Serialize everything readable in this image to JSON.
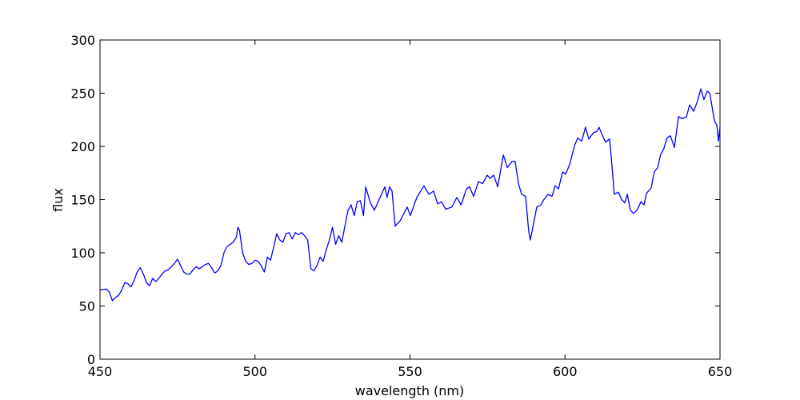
{
  "chart_data": {
    "type": "line",
    "xlabel": "wavelength (nm)",
    "ylabel": "flux",
    "xlim": [
      450,
      650
    ],
    "ylim": [
      0,
      300
    ],
    "xticks": [
      450,
      500,
      550,
      600,
      650
    ],
    "yticks": [
      0,
      50,
      100,
      150,
      200,
      250,
      300
    ],
    "grid": false,
    "series": [
      {
        "color": "#0000ff",
        "x": [
          450,
          452,
          453,
          454,
          455,
          456,
          457,
          458,
          459,
          460,
          461,
          462,
          463,
          464,
          465,
          466,
          467,
          468,
          469,
          470,
          471,
          472,
          473,
          474,
          475,
          476,
          477,
          478,
          479,
          480,
          481,
          482,
          483,
          484,
          485,
          486,
          487,
          488,
          489,
          490,
          491,
          492,
          493,
          494,
          494.5,
          495,
          496,
          497,
          498,
          499,
          500,
          501,
          502,
          503,
          504,
          505,
          506,
          507,
          508,
          509,
          510,
          511,
          512,
          513,
          514,
          515,
          516,
          517,
          518,
          519,
          520,
          521,
          522,
          523,
          524,
          525,
          526,
          527,
          528,
          529,
          530,
          531,
          532,
          533,
          534,
          535,
          535.7,
          537.2,
          538.5,
          541.9,
          542.6,
          543.4,
          544.2,
          545.2,
          546.8,
          549.1,
          550.1,
          552.2,
          554.5,
          556.1,
          557.6,
          558.9,
          560.2,
          561.5,
          563.5,
          565.1,
          566.5,
          568.2,
          569.2,
          570.5,
          572.1,
          573.4,
          574.9,
          575.9,
          577,
          578.3,
          580.1,
          581.4,
          582.9,
          583.9,
          585,
          586,
          587.3,
          588.3,
          588.8,
          589.9,
          590.9,
          592.2,
          593.2,
          594.5,
          595.8,
          596.8,
          597.9,
          599.2,
          600.2,
          601.5,
          603,
          604.1,
          605.4,
          606.6,
          607.7,
          609.2,
          610.3,
          611,
          612.1,
          613.1,
          614.4,
          615.2,
          615.9,
          617.2,
          618.3,
          619.3,
          620.1,
          621.1,
          622.1,
          623.2,
          624.5,
          625.5,
          626.3,
          627.8,
          628.8,
          629.9,
          630.8,
          631.9,
          632.9,
          634,
          635.3,
          636.6,
          637.9,
          639.2,
          640.2,
          641.5,
          642.8,
          643.8,
          644.8,
          645.9,
          646.7,
          647.4,
          648.2,
          649,
          649.5,
          650
        ],
        "values": [
          65,
          66,
          63,
          55,
          58,
          60,
          65,
          72,
          71,
          68,
          74,
          82,
          86,
          80,
          72,
          69,
          76,
          73,
          76,
          80,
          83,
          84,
          87,
          90,
          94,
          88,
          82,
          80,
          80,
          84,
          87,
          85,
          87,
          89,
          90,
          86,
          81,
          83,
          88,
          100,
          106,
          108,
          110,
          115,
          124,
          121,
          100,
          92,
          89,
          90,
          93,
          92,
          88,
          82,
          96,
          93,
          105,
          118,
          112,
          110,
          118,
          119,
          113,
          119,
          117,
          119,
          116,
          112,
          85,
          83,
          88,
          96,
          92,
          103,
          112,
          124,
          108,
          116,
          110,
          125,
          140,
          145,
          135,
          148,
          149,
          135,
          162,
          147,
          140,
          162,
          152,
          162,
          158,
          125,
          130,
          143,
          135,
          152,
          163,
          155,
          158,
          146,
          148,
          141,
          143,
          152,
          145,
          160,
          162,
          153,
          167,
          165,
          173,
          170,
          173,
          162,
          192,
          180,
          186,
          186,
          165,
          155,
          153,
          120,
          112,
          128,
          143,
          145,
          150,
          155,
          153,
          163,
          160,
          176,
          174,
          183,
          200,
          208,
          205,
          218,
          207,
          213,
          214,
          218,
          210,
          204,
          207,
          180,
          155,
          157,
          150,
          147,
          155,
          140,
          137,
          140,
          148,
          145,
          156,
          161,
          176,
          180,
          192,
          198,
          208,
          210,
          199,
          228,
          226,
          228,
          239,
          233,
          243,
          254,
          244,
          252,
          250,
          238,
          224,
          220,
          205,
          218
        ]
      }
    ]
  }
}
